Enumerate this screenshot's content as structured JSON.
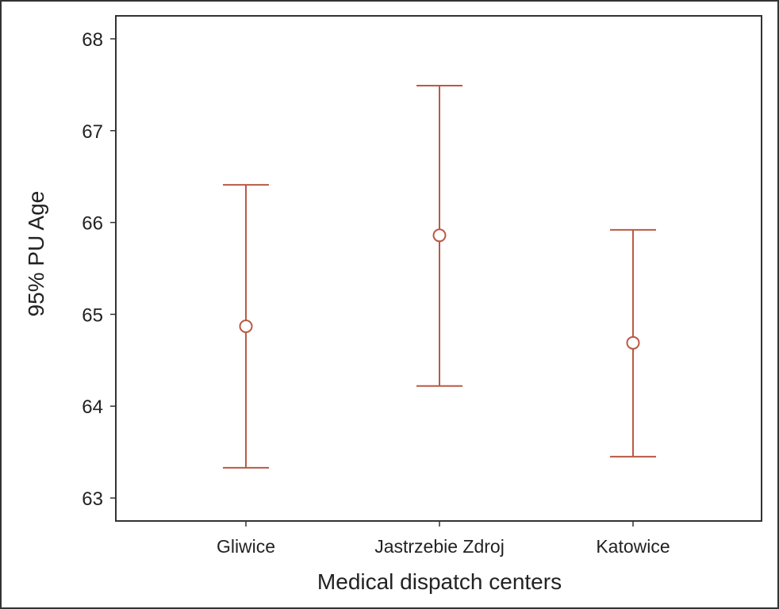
{
  "chart_data": {
    "type": "errorbar",
    "categories": [
      "Gliwice",
      "Jastrzebie Zdroj",
      "Katowice"
    ],
    "series": [
      {
        "mean": [
          64.87,
          65.86,
          64.69
        ],
        "lower": [
          63.33,
          64.22,
          63.45
        ],
        "upper": [
          66.41,
          67.49,
          65.92
        ]
      }
    ],
    "xlabel": "Medical dispatch centers",
    "ylabel": "95% PU Age",
    "ylim": [
      62.75,
      68.25
    ],
    "yticks": [
      "63",
      "64",
      "65",
      "66",
      "67",
      "68"
    ],
    "marker": "open-circle",
    "grid": false,
    "colors": {
      "series": "#b85a44",
      "axis": "#333333",
      "text": "#222222",
      "frame": "#333333"
    }
  }
}
